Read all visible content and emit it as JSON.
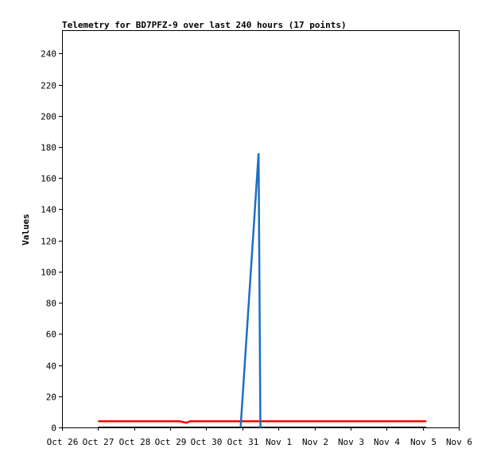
{
  "chart_data": {
    "type": "line",
    "title": "Telemetry for BD7PFZ-9 over last 240 hours (17 points)",
    "xlabel": "",
    "ylabel": "Values",
    "x_tick_labels": [
      "Oct 26",
      "Oct 27",
      "Oct 28",
      "Oct 29",
      "Oct 30",
      "Oct 31",
      "Nov 1",
      "Nov 2",
      "Nov 3",
      "Nov 4",
      "Nov 5",
      "Nov 6"
    ],
    "y_ticks": [
      0,
      20,
      40,
      60,
      80,
      100,
      120,
      140,
      160,
      180,
      200,
      220,
      240
    ],
    "ylim": [
      0,
      255
    ],
    "xlim_days": [
      0,
      11
    ],
    "grid": false,
    "legend": "none",
    "series": [
      {
        "color": "#ff0000",
        "x_days": [
          1.0,
          3.25,
          3.35,
          3.45,
          3.55,
          4.5,
          5.5,
          6.5,
          7.5,
          8.5,
          9.5,
          10.1
        ],
        "values": [
          4,
          4,
          3.5,
          3,
          4,
          4,
          4,
          4,
          4,
          4,
          4,
          4
        ]
      },
      {
        "color": "#000000",
        "x_days": [
          1.0,
          2.0,
          3.0,
          4.0,
          4.95,
          5.55,
          6.5,
          7.5,
          8.5,
          9.5,
          10.1
        ],
        "values": [
          0,
          0,
          0,
          0,
          0,
          0,
          0,
          0,
          0,
          0,
          0
        ]
      },
      {
        "color": "#1e6fbf",
        "x_days": [
          4.95,
          5.45,
          5.5,
          5.52
        ],
        "values": [
          0,
          176,
          0,
          0
        ]
      }
    ]
  }
}
